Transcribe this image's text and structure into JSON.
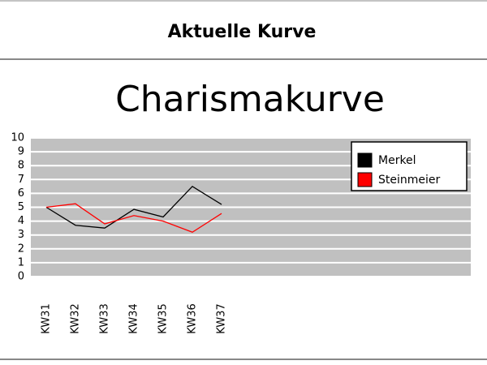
{
  "header": {
    "title": "Aktuelle Kurve"
  },
  "chart_data": {
    "type": "line",
    "title": "Charismakurve",
    "title_color": "#0000ff",
    "categories": [
      "KW31",
      "KW32",
      "KW33",
      "KW34",
      "KW35",
      "KW36",
      "KW37"
    ],
    "series": [
      {
        "name": "Merkel",
        "color": "#000000",
        "values": [
          5.0,
          3.7,
          3.5,
          4.85,
          4.3,
          6.5,
          5.2
        ]
      },
      {
        "name": "Steinmeier",
        "color": "#ff0000",
        "values": [
          5.0,
          5.25,
          3.8,
          4.4,
          4.0,
          3.2,
          4.55
        ]
      }
    ],
    "ylim": [
      0,
      10
    ],
    "yticks": [
      0,
      1,
      2,
      3,
      4,
      5,
      6,
      7,
      8,
      9,
      10
    ],
    "grid": true,
    "legend": "top-right"
  }
}
